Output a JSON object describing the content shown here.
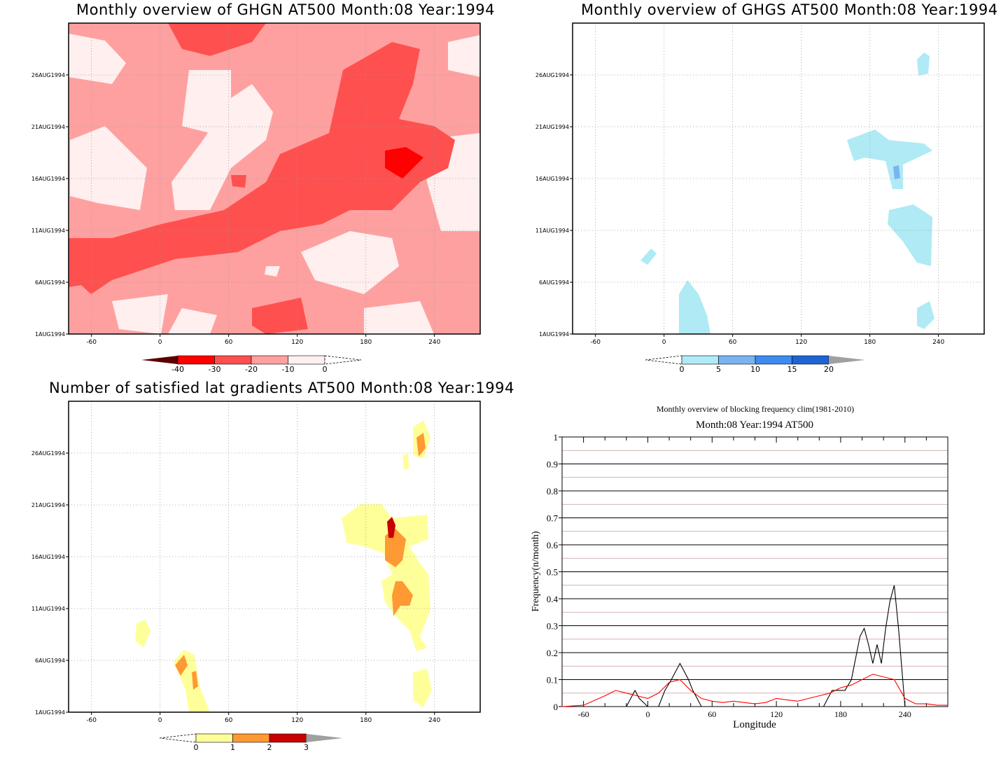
{
  "chart_data": [
    {
      "type": "heatmap",
      "title": "Monthly overview of GHGN AT500 Month:08 Year:1994",
      "x_ticks": [
        "-60",
        "0",
        "60",
        "120",
        "180",
        "240"
      ],
      "x_tick_values": [
        -60,
        0,
        60,
        120,
        180,
        240
      ],
      "xlim": [
        -80,
        280
      ],
      "y_ticks": [
        "1AUG1994",
        "6AUG1994",
        "11AUG1994",
        "16AUG1994",
        "21AUG1994",
        "26AUG1994"
      ],
      "y_tick_values": [
        1,
        6,
        11,
        16,
        21,
        26
      ],
      "ylim": [
        1,
        31
      ],
      "grid": true,
      "colorbar": {
        "labels": [
          "-40",
          "-30",
          "-20",
          "-10",
          "0"
        ],
        "colors": [
          "#5a0000",
          "#ff0000",
          "#ff5050",
          "#ffa0a0",
          "#ffefef",
          "#ffffff"
        ]
      }
    },
    {
      "type": "heatmap",
      "title": "Monthly overview of GHGS AT500 Month:08 Year:1994",
      "x_ticks": [
        "-60",
        "0",
        "60",
        "120",
        "180",
        "240"
      ],
      "x_tick_values": [
        -60,
        0,
        60,
        120,
        180,
        240
      ],
      "xlim": [
        -80,
        280
      ],
      "y_ticks": [
        "1AUG1994",
        "6AUG1994",
        "11AUG1994",
        "16AUG1994",
        "21AUG1994",
        "26AUG1994"
      ],
      "y_tick_values": [
        1,
        6,
        11,
        16,
        21,
        26
      ],
      "ylim": [
        1,
        31
      ],
      "grid": true,
      "colorbar": {
        "labels": [
          "0",
          "5",
          "10",
          "15",
          "20"
        ],
        "colors": [
          "#ffffff",
          "#afeaf5",
          "#78b4f0",
          "#3c8cf0",
          "#1e64d2",
          "#a0a0a0"
        ]
      }
    },
    {
      "type": "heatmap",
      "title": "Number of satisfied lat gradients AT500 Month:08 Year:1994",
      "x_ticks": [
        "-60",
        "0",
        "60",
        "120",
        "180",
        "240"
      ],
      "x_tick_values": [
        -60,
        0,
        60,
        120,
        180,
        240
      ],
      "xlim": [
        -80,
        280
      ],
      "y_ticks": [
        "1AUG1994",
        "6AUG1994",
        "11AUG1994",
        "16AUG1994",
        "21AUG1994",
        "26AUG1994"
      ],
      "y_tick_values": [
        1,
        6,
        11,
        16,
        21,
        26
      ],
      "ylim": [
        1,
        31
      ],
      "grid": true,
      "colorbar": {
        "labels": [
          "0",
          "1",
          "2",
          "3"
        ],
        "colors": [
          "#ffffff",
          "#ffff9a",
          "#ff9933",
          "#c80000",
          "#a0a0a0"
        ]
      }
    },
    {
      "type": "line",
      "title": "Monthly overview of blocking frequency clim(1981-2010)",
      "subtitle": "Month:08 Year:1994  AT500",
      "xlabel": "Longitude",
      "ylabel": "Frequency(n/month)",
      "xlim": [
        -80,
        280
      ],
      "ylim": [
        0,
        1
      ],
      "x_ticks": [
        "-60",
        "0",
        "60",
        "120",
        "180",
        "240"
      ],
      "x_tick_values": [
        -60,
        0,
        60,
        120,
        180,
        240
      ],
      "y_ticks": [
        "0",
        "0.1",
        "0.2",
        "0.3",
        "0.4",
        "0.5",
        "0.6",
        "0.7",
        "0.8",
        "0.9",
        "1"
      ],
      "y_tick_values": [
        0,
        0.1,
        0.2,
        0.3,
        0.4,
        0.5,
        0.6,
        0.7,
        0.8,
        0.9,
        1
      ],
      "grid": true,
      "series": [
        {
          "color": "#000000",
          "x": [
            -80,
            -20,
            -16,
            -12,
            -8,
            0,
            10,
            16,
            22,
            26,
            30,
            34,
            38,
            42,
            46,
            50,
            90,
            130,
            164,
            168,
            172,
            176,
            184,
            190,
            198,
            202,
            206,
            210,
            214,
            218,
            222,
            226,
            230,
            234,
            240,
            280
          ],
          "y": [
            0,
            0,
            0.03,
            0.06,
            0.03,
            0,
            0,
            0.06,
            0.1,
            0.13,
            0.16,
            0.13,
            0.1,
            0.06,
            0.03,
            0,
            0,
            0,
            0,
            0.03,
            0.06,
            0.06,
            0.06,
            0.1,
            0.26,
            0.29,
            0.23,
            0.16,
            0.23,
            0.16,
            0.29,
            0.39,
            0.45,
            0.29,
            0,
            0
          ]
        },
        {
          "color": "#ff0000",
          "x": [
            -80,
            -60,
            -40,
            -30,
            -20,
            -10,
            0,
            10,
            20,
            30,
            40,
            50,
            60,
            70,
            80,
            90,
            100,
            110,
            120,
            130,
            140,
            150,
            160,
            170,
            180,
            190,
            200,
            210,
            220,
            230,
            240,
            250,
            260,
            270,
            280
          ],
          "y": [
            0,
            0.005,
            0.04,
            0.06,
            0.05,
            0.04,
            0.03,
            0.05,
            0.09,
            0.1,
            0.06,
            0.03,
            0.02,
            0.015,
            0.02,
            0.015,
            0.01,
            0.015,
            0.03,
            0.025,
            0.02,
            0.03,
            0.04,
            0.05,
            0.07,
            0.08,
            0.1,
            0.12,
            0.11,
            0.1,
            0.03,
            0.01,
            0.01,
            0.005,
            0.005
          ]
        }
      ]
    }
  ]
}
